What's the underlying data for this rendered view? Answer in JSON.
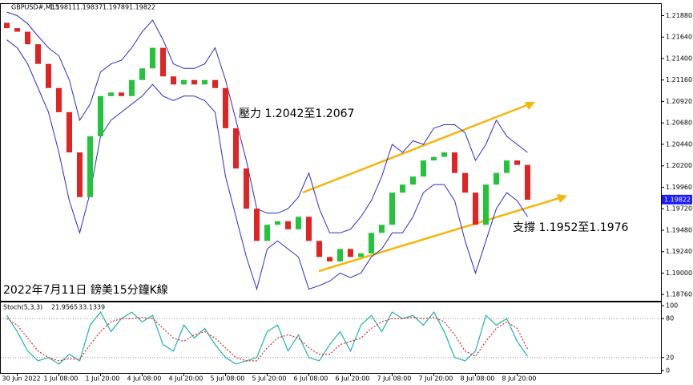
{
  "chart_data": [
    {
      "type": "candlestick",
      "symbol": "GBPUSD#,M15",
      "header_values": [
        1.19811,
        1.19837,
        1.19789,
        1.19822
      ],
      "annotations": [
        "壓力 1.2042至1.2067",
        "支撐 1.1952至1.1976",
        "2022年7月11日 鎊美15分鐘K線"
      ],
      "categories": [
        null,
        "30 Jun 2022",
        null,
        null,
        null,
        "1 Jul 08:00",
        null,
        null,
        null,
        "1 Jul 20:00",
        null,
        null,
        null,
        "4 Jul 08:00",
        null,
        null,
        null,
        "4 Jul 20:00",
        null,
        null,
        null,
        "5 Jul 08:00",
        null,
        null,
        null,
        "5 Jul 20:00",
        null,
        null,
        null,
        "6 Jul 08:00",
        null,
        null,
        null,
        "6 Jul 20:00",
        null,
        null,
        null,
        "7 Jul 08:00",
        null,
        null,
        null,
        "7 Jul 20:00",
        null,
        null,
        null,
        "8 Jul 08:00",
        null,
        null,
        null,
        "8 Jul 20:00",
        null
      ],
      "open": [
        1.218,
        1.2174,
        1.217,
        1.2156,
        1.2134,
        1.2107,
        1.208,
        1.2035,
        1.1985,
        1.2053,
        1.2098,
        1.2102,
        1.2098,
        1.2116,
        1.2129,
        1.2152,
        1.212,
        1.2111,
        1.2116,
        1.2111,
        1.2116,
        1.2107,
        1.2062,
        1.2017,
        1.1972,
        1.1936,
        1.1954,
        1.1958,
        1.1949,
        1.1963,
        1.1936,
        1.1918,
        1.1913,
        1.1927,
        1.1918,
        1.1922,
        1.1945,
        1.1954,
        1.199,
        1.1999,
        1.2008,
        1.2026,
        1.203,
        1.2035,
        1.2012,
        1.199,
        1.1954,
        1.1999,
        1.2012,
        1.2026,
        1.2021
      ],
      "close": [
        1.2174,
        1.217,
        1.2156,
        1.2134,
        1.2107,
        1.208,
        1.2035,
        1.1985,
        1.2053,
        1.2098,
        1.2102,
        1.2098,
        1.2116,
        1.2129,
        1.2152,
        1.212,
        1.2111,
        1.2116,
        1.2111,
        1.2116,
        1.2107,
        1.2062,
        1.2017,
        1.1972,
        1.1936,
        1.1954,
        1.1958,
        1.1949,
        1.1963,
        1.1936,
        1.1918,
        1.1913,
        1.1927,
        1.1918,
        1.1922,
        1.1945,
        1.1954,
        1.199,
        1.1999,
        1.2008,
        1.2026,
        1.203,
        1.2035,
        1.2012,
        1.199,
        1.1954,
        1.1999,
        1.2012,
        1.2026,
        1.2021,
        1.1982
      ],
      "upper_band": [
        1.2192,
        1.2188,
        1.2179,
        1.2165,
        1.2152,
        1.2143,
        1.2116,
        1.2071,
        1.2089,
        1.2125,
        1.2134,
        1.2138,
        1.2152,
        1.217,
        1.2183,
        1.2161,
        1.2134,
        1.2129,
        1.2129,
        1.2134,
        1.2152,
        1.2116,
        1.2071,
        1.2026,
        1.1972,
        1.1967,
        1.1967,
        1.1972,
        1.1985,
        1.2012,
        1.1972,
        1.1945,
        1.1945,
        1.1949,
        1.1963,
        1.1981,
        1.2008,
        1.2044,
        1.2035,
        1.2048,
        1.2044,
        1.2062,
        1.2066,
        1.2066,
        1.2057,
        1.2026,
        1.2044,
        1.2071,
        1.2053,
        1.2044,
        1.2035
      ],
      "lower_band": [
        1.2161,
        1.2152,
        1.2134,
        1.2107,
        1.208,
        1.2035,
        1.1981,
        1.1945,
        1.199,
        1.2053,
        1.2071,
        1.208,
        1.2089,
        1.2098,
        1.2111,
        1.2098,
        1.2093,
        1.2098,
        1.2098,
        1.2093,
        1.208,
        1.2008,
        1.1963,
        1.1918,
        1.1882,
        1.1927,
        1.1936,
        1.1927,
        1.1918,
        1.1882,
        1.1886,
        1.1891,
        1.19,
        1.1895,
        1.19,
        1.1918,
        1.1927,
        1.1945,
        1.1945,
        1.1963,
        1.199,
        1.1999,
        1.1999,
        1.1981,
        1.1936,
        1.19,
        1.1936,
        1.1972,
        1.199,
        1.1981,
        1.1963
      ],
      "up_color": "#22c43a",
      "down_color": "#e02424",
      "band_color": "#2a2ad0",
      "ylim": [
        1.1869,
        1.2201
      ],
      "yticks": [
        {
          "value": 1.1876,
          "label": "1.18760"
        },
        {
          "value": 1.19,
          "label": "1.19000"
        },
        {
          "value": 1.1924,
          "label": "1.19240"
        },
        {
          "value": 1.1948,
          "label": "1.19480"
        },
        {
          "value": 1.1972,
          "label": "1.19720"
        },
        {
          "value": 1.1996,
          "label": "1.19960"
        },
        {
          "value": 1.202,
          "label": "1.20200"
        },
        {
          "value": 1.2044,
          "label": "1.20440"
        },
        {
          "value": 1.2068,
          "label": "1.20680"
        },
        {
          "value": 1.2092,
          "label": "1.20920"
        },
        {
          "value": 1.2116,
          "label": "1.21160"
        },
        {
          "value": 1.214,
          "label": "1.21400"
        },
        {
          "value": 1.2164,
          "label": "1.21640"
        },
        {
          "value": 1.2188,
          "label": "1.21880"
        }
      ]
    },
    {
      "type": "stochastic",
      "title": "Stoch(5,3,3)",
      "header_values": [
        21.9565,
        33.1339
      ],
      "series": [
        {
          "color": "#20b2aa",
          "values": [
            85,
            60,
            30,
            15,
            20,
            10,
            25,
            15,
            70,
            90,
            60,
            80,
            90,
            75,
            85,
            40,
            30,
            70,
            50,
            65,
            40,
            20,
            10,
            15,
            20,
            60,
            70,
            30,
            55,
            20,
            15,
            40,
            60,
            30,
            70,
            85,
            60,
            90,
            80,
            85,
            70,
            90,
            60,
            20,
            15,
            30,
            85,
            70,
            80,
            45,
            22
          ]
        },
        {
          "color": "#e02424",
          "dashed": true,
          "values": [
            80,
            70,
            50,
            30,
            20,
            15,
            18,
            17,
            40,
            60,
            75,
            80,
            80,
            82,
            80,
            65,
            50,
            45,
            55,
            60,
            50,
            35,
            20,
            15,
            15,
            35,
            50,
            55,
            50,
            35,
            25,
            25,
            40,
            45,
            50,
            65,
            75,
            80,
            80,
            82,
            80,
            82,
            75,
            55,
            30,
            22,
            45,
            65,
            75,
            65,
            33
          ]
        }
      ],
      "ylim": [
        -5,
        105
      ],
      "yticks": [
        0,
        20,
        80,
        100
      ]
    }
  ]
}
